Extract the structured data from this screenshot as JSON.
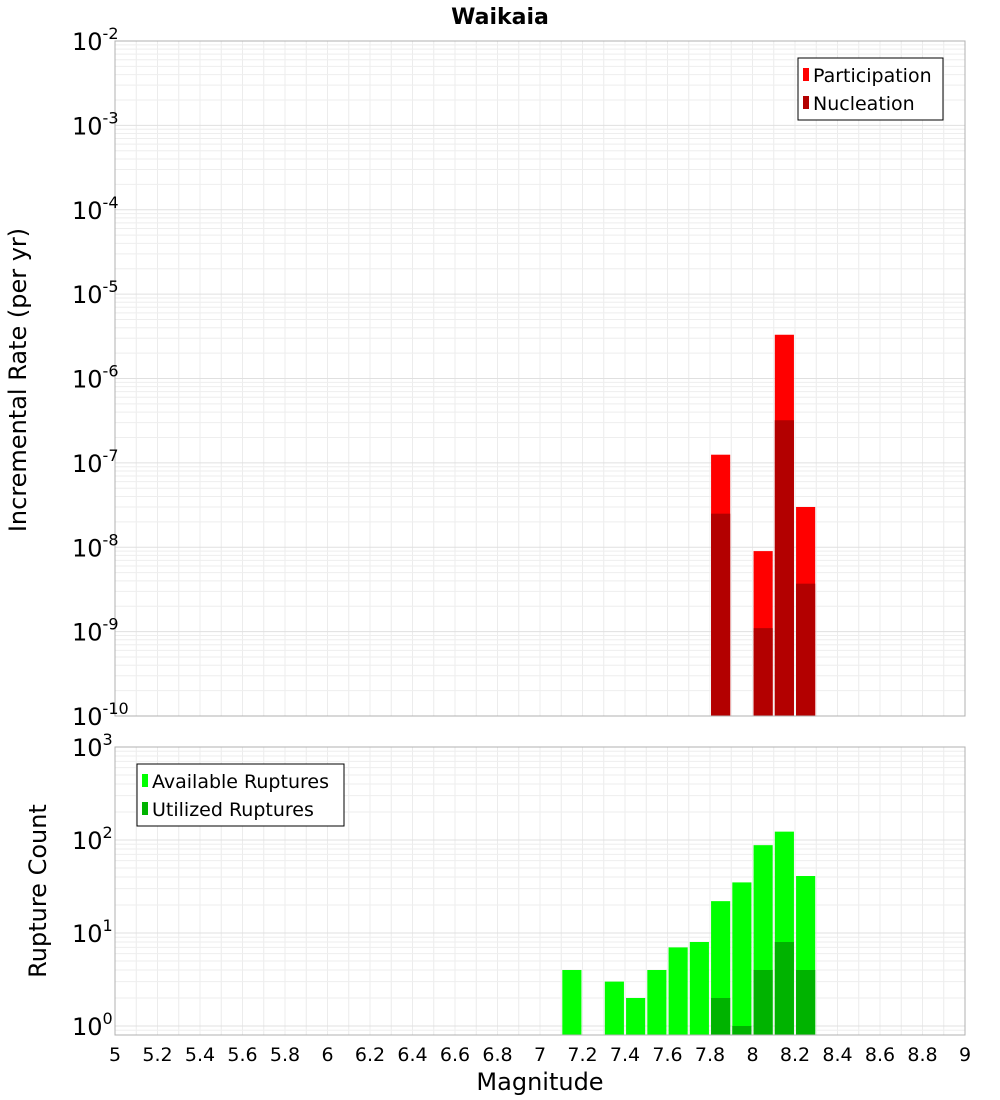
{
  "chart_data": [
    {
      "type": "bar",
      "title": "Waikaia",
      "ylabel": "Incremental Rate (per yr)",
      "xlabel": "",
      "yscale": "log",
      "ylim": [
        1e-10,
        0.01
      ],
      "xlim": [
        5,
        9
      ],
      "grid": true,
      "legend_position": "top-right",
      "bar_width": 0.09,
      "ytick_base": "10",
      "ytick_exponents": [
        "-10",
        "-9",
        "-8",
        "-7",
        "-6",
        "-5",
        "-4",
        "-3",
        "-2"
      ],
      "series": [
        {
          "name": "Participation",
          "color": "#ff0000",
          "x": [
            7.85,
            8.05,
            8.15,
            8.25
          ],
          "values": [
            1.25e-07,
            9e-09,
            3.3e-06,
            3e-08
          ]
        },
        {
          "name": "Nucleation",
          "color": "#b30000",
          "x": [
            7.85,
            8.05,
            8.15,
            8.25
          ],
          "values": [
            2.5e-08,
            1.1e-09,
            3.2e-07,
            3.7e-09
          ]
        }
      ]
    },
    {
      "type": "bar",
      "title": "",
      "ylabel": "Rupture Count",
      "xlabel": "Magnitude",
      "yscale": "log",
      "ylim": [
        0.8,
        1000
      ],
      "xlim": [
        5,
        9
      ],
      "grid": true,
      "legend_position": "top-left",
      "bar_width": 0.09,
      "ytick_base": "10",
      "ytick_exponents": [
        "0",
        "1",
        "2",
        "3"
      ],
      "xticks": [
        "5",
        "5.2",
        "5.4",
        "5.6",
        "5.8",
        "6",
        "6.2",
        "6.4",
        "6.6",
        "6.8",
        "7",
        "7.2",
        "7.4",
        "7.6",
        "7.8",
        "8",
        "8.2",
        "8.4",
        "8.6",
        "8.8",
        "9"
      ],
      "series": [
        {
          "name": "Available Ruptures",
          "color": "#00ff00",
          "x": [
            7.15,
            7.35,
            7.45,
            7.55,
            7.65,
            7.75,
            7.85,
            7.95,
            8.05,
            8.15,
            8.25
          ],
          "values": [
            4,
            3,
            2,
            4,
            7,
            8,
            22,
            35,
            88,
            123,
            41
          ]
        },
        {
          "name": "Utilized Ruptures",
          "color": "#00b300",
          "x": [
            7.85,
            7.95,
            8.05,
            8.15,
            8.25
          ],
          "values": [
            2,
            1,
            4,
            8,
            4
          ]
        }
      ]
    }
  ]
}
